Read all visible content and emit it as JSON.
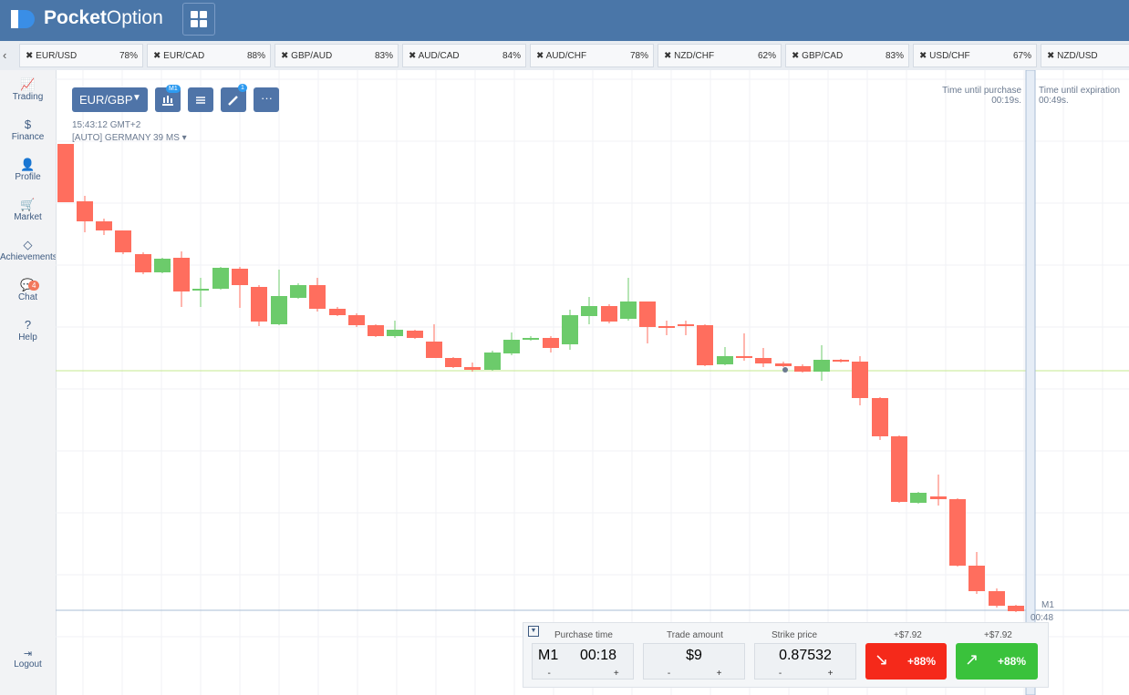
{
  "header": {
    "logo_bold": "Pocket",
    "logo_light": "Option"
  },
  "tickers": [
    {
      "pair": "EUR/USD",
      "payout": "78%"
    },
    {
      "pair": "EUR/CAD",
      "payout": "88%"
    },
    {
      "pair": "GBP/AUD",
      "payout": "83%"
    },
    {
      "pair": "AUD/CAD",
      "payout": "84%"
    },
    {
      "pair": "AUD/CHF",
      "payout": "78%"
    },
    {
      "pair": "NZD/CHF",
      "payout": "62%"
    },
    {
      "pair": "GBP/CAD",
      "payout": "83%"
    },
    {
      "pair": "USD/CHF",
      "payout": "67%"
    },
    {
      "pair": "NZD/USD",
      "payout": ""
    }
  ],
  "sidebar": {
    "items": [
      "Trading",
      "Finance",
      "Profile",
      "Market",
      "Achievements",
      "Chat",
      "Help"
    ],
    "chat_badge": "4",
    "logout": "Logout"
  },
  "toolbar": {
    "asset": "EUR/GBP",
    "timeframe_badge": "M1",
    "drawings_badge": "1"
  },
  "info": {
    "time": "15:43:12 GMT+2",
    "server": "[AUTO] GERMANY",
    "ping": "39 MS"
  },
  "timers": {
    "purchase_label": "Time until purchase",
    "purchase_value": "00:19s.",
    "expiration_label": "Time until expiration",
    "expiration_value": "00:49s.",
    "period": "M1",
    "countdown": "00:48"
  },
  "panel": {
    "purchase_time": {
      "label": "Purchase time",
      "period": "M1",
      "value": "00:18",
      "minus": "-",
      "plus": "+"
    },
    "trade_amount": {
      "label": "Trade amount",
      "value": "$9",
      "minus": "-",
      "plus": "+"
    },
    "strike_price": {
      "label": "Strike price",
      "value": "0.87532",
      "minus": "-",
      "plus": "+"
    },
    "down": {
      "profit": "+$7.92",
      "payout": "+88%"
    },
    "up": {
      "profit": "+$7.92",
      "payout": "+88%"
    }
  }
}
